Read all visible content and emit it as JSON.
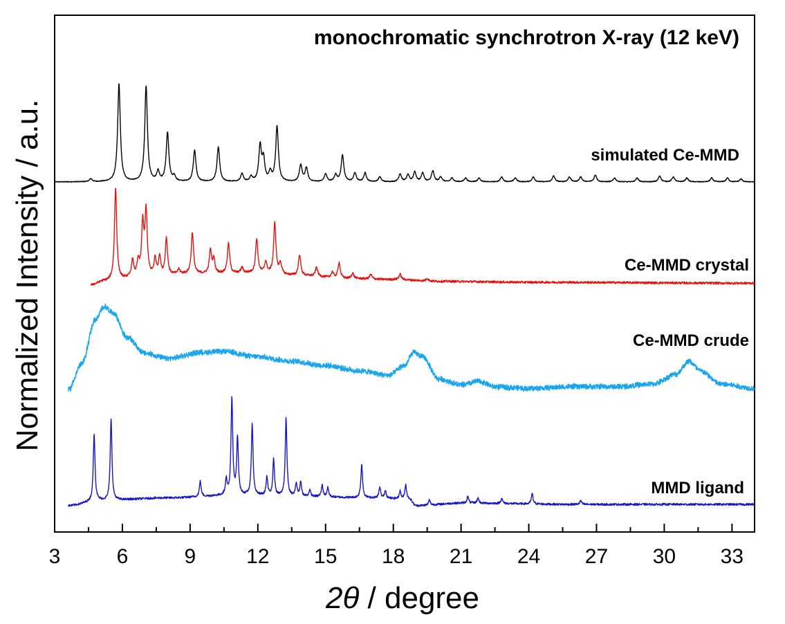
{
  "chart_data": {
    "type": "line",
    "title": "monochromatic synchrotron X-ray (12 keV)",
    "xlabel": {
      "variable": "2θ",
      "unit": "/ degree"
    },
    "ylabel": "Normalized Intensity / a.u.",
    "xlim": [
      3,
      34
    ],
    "x_ticks": [
      "3",
      "6",
      "9",
      "12",
      "15",
      "18",
      "21",
      "24",
      "27",
      "30",
      "33"
    ],
    "x_minor_step": 1.5,
    "y_ticks": [],
    "grid": false,
    "legend": "none (series labeled inline at right)",
    "series": [
      {
        "name": "simulated Ce-MMD",
        "color": "#000000",
        "x_range": [
          3.0,
          34.0
        ],
        "baseline": 0.0,
        "peaks": [
          [
            4.6,
            0.03
          ],
          [
            5.85,
            1.0
          ],
          [
            7.05,
            0.97
          ],
          [
            7.58,
            0.1
          ],
          [
            8.0,
            0.5
          ],
          [
            8.3,
            0.05
          ],
          [
            9.2,
            0.32
          ],
          [
            10.25,
            0.35
          ],
          [
            11.3,
            0.08
          ],
          [
            11.7,
            0.05
          ],
          [
            12.1,
            0.36
          ],
          [
            12.25,
            0.22
          ],
          [
            12.55,
            0.09
          ],
          [
            12.85,
            0.56
          ],
          [
            13.9,
            0.17
          ],
          [
            14.15,
            0.14
          ],
          [
            15.0,
            0.08
          ],
          [
            15.45,
            0.07
          ],
          [
            15.75,
            0.27
          ],
          [
            16.3,
            0.09
          ],
          [
            16.75,
            0.09
          ],
          [
            17.4,
            0.05
          ],
          [
            18.3,
            0.08
          ],
          [
            18.65,
            0.07
          ],
          [
            18.95,
            0.1
          ],
          [
            19.3,
            0.09
          ],
          [
            19.75,
            0.11
          ],
          [
            20.1,
            0.05
          ],
          [
            20.6,
            0.04
          ],
          [
            21.2,
            0.04
          ],
          [
            21.8,
            0.04
          ],
          [
            22.8,
            0.05
          ],
          [
            23.4,
            0.04
          ],
          [
            24.2,
            0.05
          ],
          [
            25.1,
            0.06
          ],
          [
            25.8,
            0.05
          ],
          [
            26.3,
            0.05
          ],
          [
            26.95,
            0.07
          ],
          [
            27.8,
            0.04
          ],
          [
            28.8,
            0.04
          ],
          [
            29.8,
            0.06
          ],
          [
            30.4,
            0.05
          ],
          [
            31.0,
            0.04
          ],
          [
            32.1,
            0.04
          ],
          [
            32.8,
            0.04
          ],
          [
            33.4,
            0.03
          ]
        ],
        "noise": 0.004
      },
      {
        "name": "Ce-MMD crystal",
        "color": "#e8100c",
        "x_range": [
          4.6,
          34.0
        ],
        "baseline_points": [
          [
            4.6,
            0.0
          ],
          [
            5.2,
            0.04
          ],
          [
            7.0,
            0.09
          ],
          [
            9.0,
            0.12
          ],
          [
            12.0,
            0.13
          ],
          [
            14.0,
            0.1
          ],
          [
            16.0,
            0.07
          ],
          [
            18.0,
            0.06
          ],
          [
            20.0,
            0.04
          ],
          [
            24.0,
            0.03
          ],
          [
            34.0,
            0.02
          ]
        ],
        "peaks": [
          [
            5.7,
            1.0
          ],
          [
            6.45,
            0.18
          ],
          [
            6.7,
            0.15
          ],
          [
            6.9,
            0.55
          ],
          [
            7.05,
            0.7
          ],
          [
            7.45,
            0.18
          ],
          [
            7.65,
            0.2
          ],
          [
            7.95,
            0.4
          ],
          [
            8.5,
            0.05
          ],
          [
            9.1,
            0.45
          ],
          [
            9.9,
            0.25
          ],
          [
            10.05,
            0.15
          ],
          [
            10.7,
            0.33
          ],
          [
            11.3,
            0.06
          ],
          [
            11.95,
            0.37
          ],
          [
            12.35,
            0.12
          ],
          [
            12.75,
            0.55
          ],
          [
            13.0,
            0.12
          ],
          [
            13.85,
            0.23
          ],
          [
            14.6,
            0.1
          ],
          [
            15.3,
            0.06
          ],
          [
            15.6,
            0.17
          ],
          [
            16.2,
            0.06
          ],
          [
            17.0,
            0.05
          ],
          [
            18.3,
            0.06
          ],
          [
            19.5,
            0.03
          ]
        ],
        "noise": 0.012
      },
      {
        "name": "Ce-MMD crude",
        "color": "#1aa6ee",
        "x_range": [
          3.6,
          34.0
        ],
        "baseline_points": [
          [
            3.6,
            0.0
          ],
          [
            34.0,
            0.0
          ]
        ],
        "humps": [
          [
            3.6,
            0.0
          ],
          [
            4.2,
            0.3
          ],
          [
            4.8,
            0.8
          ],
          [
            5.2,
            0.95
          ],
          [
            5.6,
            0.88
          ],
          [
            6.2,
            0.6
          ],
          [
            7.0,
            0.42
          ],
          [
            8.0,
            0.36
          ],
          [
            9.5,
            0.43
          ],
          [
            10.5,
            0.44
          ],
          [
            12.0,
            0.38
          ],
          [
            13.5,
            0.33
          ],
          [
            15.0,
            0.28
          ],
          [
            16.5,
            0.22
          ],
          [
            17.8,
            0.17
          ],
          [
            18.5,
            0.28
          ],
          [
            18.9,
            0.43
          ],
          [
            19.3,
            0.38
          ],
          [
            20.0,
            0.13
          ],
          [
            21.0,
            0.06
          ],
          [
            21.8,
            0.1
          ],
          [
            22.5,
            0.04
          ],
          [
            24.0,
            0.02
          ],
          [
            26.0,
            0.04
          ],
          [
            28.0,
            0.04
          ],
          [
            29.5,
            0.07
          ],
          [
            30.5,
            0.18
          ],
          [
            31.1,
            0.33
          ],
          [
            31.6,
            0.22
          ],
          [
            32.5,
            0.07
          ],
          [
            34.0,
            0.02
          ]
        ],
        "noise": 0.035
      },
      {
        "name": "MMD ligand",
        "color": "#1515c8",
        "x_range": [
          3.6,
          34.0
        ],
        "baseline_points": [
          [
            3.6,
            0.0
          ],
          [
            5.0,
            0.04
          ],
          [
            8.0,
            0.06
          ],
          [
            11.0,
            0.08
          ],
          [
            14.0,
            0.07
          ],
          [
            17.0,
            0.06
          ],
          [
            18.7,
            0.05
          ],
          [
            19.0,
            0.0
          ],
          [
            21.0,
            0.02
          ],
          [
            26.0,
            0.01
          ],
          [
            34.0,
            0.01
          ]
        ],
        "peaks": [
          [
            4.75,
            0.52
          ],
          [
            5.5,
            0.63
          ],
          [
            9.45,
            0.12
          ],
          [
            10.6,
            0.12
          ],
          [
            10.85,
            0.74
          ],
          [
            11.1,
            0.44
          ],
          [
            11.75,
            0.55
          ],
          [
            12.4,
            0.14
          ],
          [
            12.7,
            0.28
          ],
          [
            13.25,
            0.6
          ],
          [
            13.7,
            0.1
          ],
          [
            13.9,
            0.11
          ],
          [
            14.3,
            0.05
          ],
          [
            14.85,
            0.09
          ],
          [
            15.1,
            0.07
          ],
          [
            16.6,
            0.26
          ],
          [
            17.4,
            0.08
          ],
          [
            17.65,
            0.06
          ],
          [
            18.3,
            0.06
          ],
          [
            18.55,
            0.11
          ],
          [
            19.6,
            0.04
          ],
          [
            21.3,
            0.05
          ],
          [
            21.75,
            0.04
          ],
          [
            22.8,
            0.04
          ],
          [
            24.15,
            0.08
          ],
          [
            26.3,
            0.03
          ]
        ],
        "noise": 0.008
      }
    ]
  }
}
